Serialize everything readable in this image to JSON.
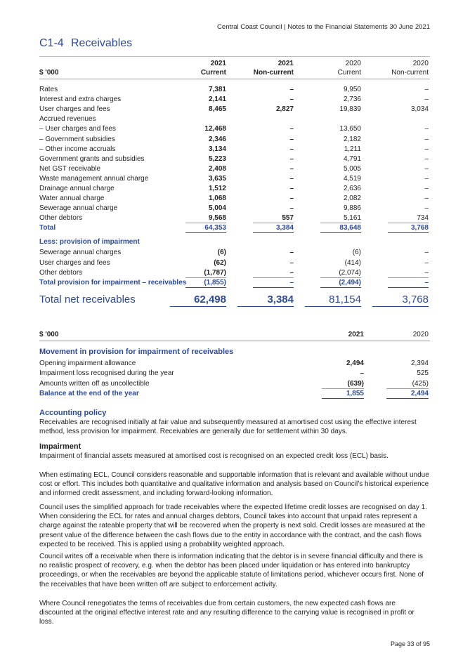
{
  "header": {
    "running_title": "Central Coast Council | Notes to the Financial Statements 30 June 2021",
    "title_code": "C1-4",
    "title": "Receivables"
  },
  "receivables_table": {
    "unit": "$ '000",
    "columns": [
      {
        "year": "2021",
        "label": "Current"
      },
      {
        "year": "2021",
        "label": "Non-current"
      },
      {
        "year": "2020",
        "label": "Current"
      },
      {
        "year": "2020",
        "label": "Non-current"
      }
    ],
    "rows": [
      {
        "label": "Rates",
        "values": [
          "7,381",
          "–",
          "9,950",
          "–"
        ]
      },
      {
        "label": "Interest and extra charges",
        "values": [
          "2,141",
          "–",
          "2,736",
          "–"
        ]
      },
      {
        "label": "User charges and fees",
        "values": [
          "8,465",
          "2,827",
          "19,839",
          "3,034"
        ]
      },
      {
        "label": "Accrued revenues"
      },
      {
        "label": "– User charges and fees",
        "values": [
          "12,468",
          "–",
          "13,650",
          "–"
        ]
      },
      {
        "label": "– Government subsidies",
        "values": [
          "2,346",
          "–",
          "2,182",
          "–"
        ]
      },
      {
        "label": "– Other income accruals",
        "values": [
          "3,134",
          "–",
          "1,211",
          "–"
        ]
      },
      {
        "label": "Government grants and subsidies",
        "values": [
          "5,223",
          "–",
          "4,791",
          "–"
        ]
      },
      {
        "label": "Net GST receivable",
        "values": [
          "2,408",
          "–",
          "5,005",
          "–"
        ]
      },
      {
        "label": "Waste management annual charge",
        "values": [
          "3,635",
          "–",
          "4,519",
          "–"
        ]
      },
      {
        "label": "Drainage annual charge",
        "values": [
          "1,512",
          "–",
          "2,636",
          "–"
        ]
      },
      {
        "label": "Water annual charge",
        "values": [
          "1,068",
          "–",
          "2,082",
          "–"
        ]
      },
      {
        "label": "Sewerage annual charge",
        "values": [
          "5,004",
          "–",
          "9,886",
          "–"
        ]
      },
      {
        "label": "Other debtors",
        "values": [
          "9,568",
          "557",
          "5,161",
          "734"
        ]
      }
    ],
    "total": {
      "label": "Total",
      "values": [
        "64,353",
        "3,384",
        "83,648",
        "3,768"
      ]
    },
    "impairment": {
      "heading": "Less: provision of impairment",
      "rows": [
        {
          "label": "Sewerage annual charges",
          "values": [
            "(6)",
            "–",
            "(6)",
            "–"
          ]
        },
        {
          "label": "User charges and fees",
          "values": [
            "(62)",
            "–",
            "(414)",
            "–"
          ]
        },
        {
          "label": "Other debtors",
          "values": [
            "(1,787)",
            "–",
            "(2,074)",
            "–"
          ]
        }
      ],
      "total": {
        "label": "Total provision for impairment – receivables",
        "values": [
          "(1,855)",
          "–",
          "(2,494)",
          "–"
        ]
      }
    },
    "net": {
      "label": "Total net receivables",
      "values": [
        "62,498",
        "3,384",
        "81,154",
        "3,768"
      ]
    }
  },
  "movement_table": {
    "unit": "$ '000",
    "columns": [
      "2021",
      "2020"
    ],
    "heading": "Movement in provision for impairment of receivables",
    "rows": [
      {
        "label": "Opening impairment allowance",
        "values": [
          "2,494",
          "2,394"
        ]
      },
      {
        "label": "Impairment loss recognised during the year",
        "values": [
          "–",
          "525"
        ]
      },
      {
        "label": "Amounts written off as uncollectible",
        "values": [
          "(639)",
          "(425)"
        ]
      }
    ],
    "total": {
      "label": "Balance at the end of the year",
      "values": [
        "1,855",
        "2,494"
      ]
    }
  },
  "accounting_policy": {
    "heading": "Accounting policy",
    "text": "Receivables are recognised initially at fair value and subsequently measured at amortised cost using the effective interest method, less provision for impairment. Receivables are generally due for settlement within 30 days."
  },
  "impairment_section": {
    "heading": "Impairment",
    "paragraphs": [
      "Impairment of financial assets measured at amortised cost is recognised on an expected credit loss (ECL) basis.",
      "When estimating ECL, Council considers reasonable and supportable information that is relevant and available without undue cost or effort. This includes both quantitative and qualitative information and analysis based on Council’s historical experience and informed credit assessment, and including forward-looking information.",
      "Council uses the simplified approach for trade receivables where the expected lifetime credit losses are recognised on day 1. When considering the ECL for rates and annual charges debtors, Council takes into account that unpaid rates represent a charge against the rateable property that will be recovered when the property is next sold. Credit losses are measured at the present value of the difference between the cash flows due to the entity in accordance with the contract, and the cash flows expected to be received. This is applied using a probability weighted approach.",
      "Council writes off a receivable when there is information indicating that the debtor is in severe financial difficulty and there is no realistic prospect of recovery, e.g. when the debtor has been placed under liquidation or has entered into bankruptcy proceedings, or when the receivables are beyond the applicable statute of limitations period, whichever occurs first. None of the receivables that have been written off are subject to enforcement activity.",
      "Where Council renegotiates the terms of receivables due from certain customers, the new expected cash flows are discounted at the original effective interest rate and any resulting difference to the carrying value is recognised in profit or loss."
    ]
  },
  "footer": {
    "page": "Page 33 of 95"
  }
}
